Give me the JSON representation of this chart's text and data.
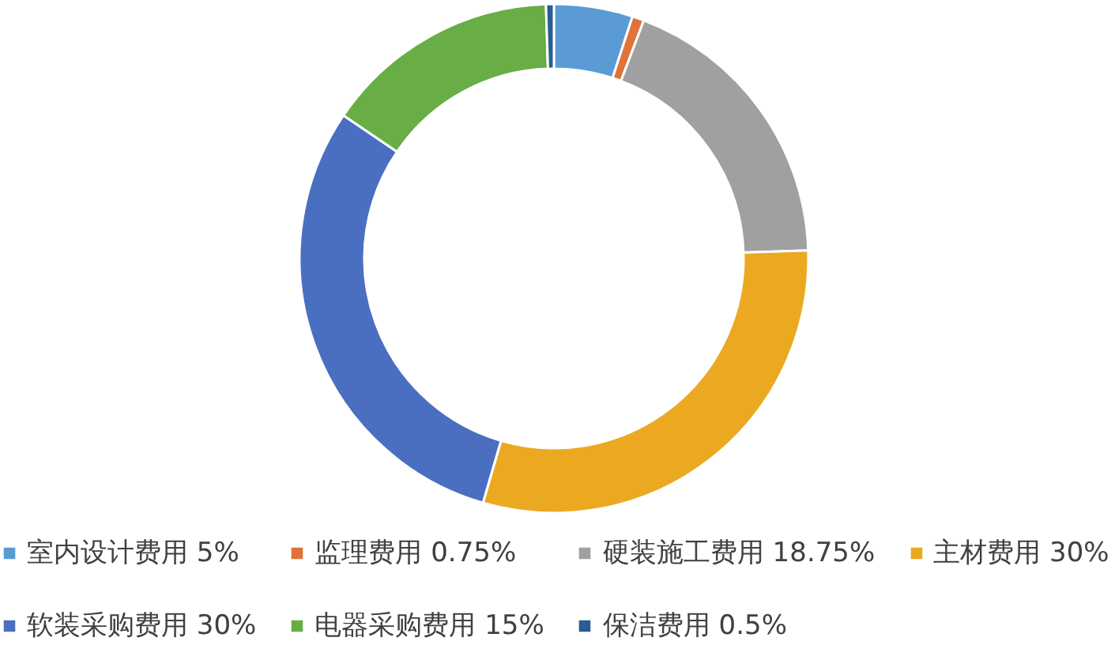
{
  "chart_data": {
    "type": "donut",
    "categories": [
      "室内设计费用 5%",
      "监理费用 0.75%",
      "硬装施工费用 18.75%",
      "主材费用 30%",
      "软装采购费用 30%",
      "电器采购费用 15%",
      "保洁费用 0.5%"
    ],
    "values": [
      5,
      0.75,
      18.75,
      30,
      30,
      15,
      0.5
    ],
    "colors": [
      "#5b9bd5",
      "#e0733a",
      "#a0a0a3",
      "#eba922",
      "#4a6fc1",
      "#68ad45",
      "#2b5d95"
    ],
    "legend": "bottom"
  }
}
